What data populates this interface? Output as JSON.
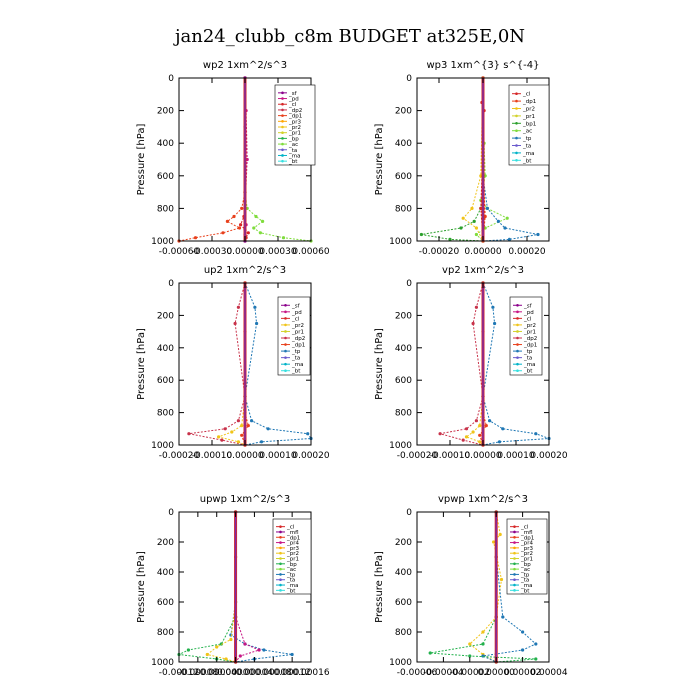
{
  "figure": {
    "title": "jan24_clubb_c8m  BUDGET at325E,0N"
  },
  "colors": {
    "_sf": "#8b008b",
    "_pd": "#c71585",
    "_cl": "#d62728",
    "_dp2": "#c8324a",
    "_dp1": "#e8401c",
    "_pr3": "#ffa500",
    "_pr2": "#f0c419",
    "_pr1": "#d2d22a",
    "_bp": "#22b14c",
    "_bp1": "#2ca02c",
    "_ac": "#7fdc3c",
    "_tp": "#1f77b4",
    "_ta": "#6a5acd",
    "_ma": "#00b3c8",
    "_bt": "#36e0e0",
    "_mfl": "#8b008b",
    "_pr4": "#c71585"
  },
  "chart_data": [
    {
      "type": "line",
      "title": "wp2  1xm^2/s^3",
      "ylabel": "Pressure  [hPa]",
      "xlim": [
        -0.0006,
        0.0006
      ],
      "ylim": [
        1000,
        0
      ],
      "xticks": [
        "-0.00060",
        "-0.00030",
        "0.00000",
        "0.00030",
        "0.00060"
      ],
      "yticks": [
        "0",
        "200",
        "400",
        "600",
        "800",
        "1000"
      ],
      "legend": [
        "_sf",
        "_pd",
        "_cl",
        "_dp2",
        "_dp1",
        "_pr3",
        "_pr2",
        "_pr1",
        "_bp",
        "_ac",
        "_ta",
        "_ma",
        "_bt"
      ],
      "series": [
        {
          "name": "_ac",
          "x": [
            0,
            0,
            2e-05,
            0.0001,
            0.00016,
            8e-05,
            0.00014,
            0.00035,
            0.0006
          ],
          "y": [
            0,
            700,
            800,
            850,
            880,
            920,
            950,
            980,
            1000
          ]
        },
        {
          "name": "_dp1",
          "x": [
            0,
            0,
            -3e-05,
            -0.0001,
            -0.00016,
            -5e-05,
            -0.0002,
            -0.00045,
            -0.0006
          ],
          "y": [
            0,
            700,
            800,
            850,
            880,
            920,
            950,
            980,
            1000
          ]
        },
        {
          "name": "_cl",
          "x": [
            0,
            0,
            -1e-05,
            -4e-05,
            0,
            3e-05,
            1e-05,
            0
          ],
          "y": [
            0,
            750,
            850,
            900,
            930,
            950,
            980,
            1000
          ]
        },
        {
          "name": "_pd",
          "x": [
            0,
            1e-05,
            2e-05,
            0,
            1e-05,
            0,
            0
          ],
          "y": [
            0,
            200,
            500,
            800,
            900,
            960,
            1000
          ]
        },
        {
          "name": "_sf",
          "x": [
            0,
            0,
            0,
            0
          ],
          "y": [
            0,
            300,
            700,
            1000
          ]
        }
      ]
    },
    {
      "type": "line",
      "title": "wp3  1xm^{3} s^{-4}",
      "ylabel": "Pressure  [hPa]",
      "xlim": [
        -0.0003,
        0.0003
      ],
      "ylim": [
        1000,
        0
      ],
      "xticks": [
        "-0.00020",
        "0.00000",
        "0.00020"
      ],
      "yticks": [
        "0",
        "200",
        "400",
        "600",
        "800",
        "1000"
      ],
      "legend": [
        "_cl",
        "_dp1",
        "_pr2",
        "_pr1",
        "_bp1",
        "_ac",
        "_tp",
        "_ta",
        "_ma",
        "_bt"
      ],
      "series": [
        {
          "name": "_ac",
          "x": [
            0,
            5e-06,
            1e-05,
            -1e-05,
            2e-05,
            0.00011,
            1e-05,
            -3e-05,
            0
          ],
          "y": [
            0,
            400,
            600,
            750,
            800,
            860,
            920,
            960,
            1000
          ]
        },
        {
          "name": "_bp1",
          "x": [
            0,
            0,
            -1e-05,
            -4e-05,
            -0.0001,
            -0.00028,
            -0.00015,
            0
          ],
          "y": [
            0,
            600,
            800,
            880,
            920,
            960,
            990,
            1000
          ]
        },
        {
          "name": "_tp",
          "x": [
            0,
            0,
            2e-05,
            7e-05,
            0.0001,
            0.00025,
            0.00012,
            0
          ],
          "y": [
            0,
            600,
            800,
            880,
            920,
            960,
            990,
            1000
          ]
        },
        {
          "name": "_pr2",
          "x": [
            0,
            -1e-05,
            -5e-05,
            -9e-05,
            -3e-05,
            0
          ],
          "y": [
            0,
            600,
            800,
            860,
            920,
            1000
          ]
        },
        {
          "name": "_cl",
          "x": [
            0,
            -5e-06,
            5e-06,
            -1e-05,
            0
          ],
          "y": [
            0,
            150,
            200,
            800,
            1000
          ]
        },
        {
          "name": "_dp1",
          "x": [
            0,
            0,
            1e-05,
            0
          ],
          "y": [
            0,
            500,
            850,
            1000
          ]
        }
      ]
    },
    {
      "type": "line",
      "title": "up2  1xm^2/s^3",
      "ylabel": "Pressure  [hPa]",
      "xlim": [
        -0.0002,
        0.0002
      ],
      "ylim": [
        1000,
        0
      ],
      "xticks": [
        "-0.00020",
        "-0.00010",
        "0.00000",
        "0.00010",
        "0.00020"
      ],
      "yticks": [
        "0",
        "200",
        "400",
        "600",
        "800",
        "1000"
      ],
      "legend": [
        "_sf",
        "_pd",
        "_cl",
        "_pr2",
        "_pr1",
        "_dp2",
        "_dp1",
        "_tp",
        "_ta",
        "_ma",
        "_bt"
      ],
      "series": [
        {
          "name": "_dp2",
          "x": [
            0,
            -2e-05,
            -3e-05,
            0,
            -2e-05,
            -6e-05,
            -0.00017,
            -7e-05,
            0
          ],
          "y": [
            0,
            150,
            250,
            700,
            850,
            900,
            930,
            970,
            1000
          ]
        },
        {
          "name": "_tp",
          "x": [
            0,
            3e-05,
            3.5e-05,
            0,
            2e-05,
            7e-05,
            0.00019,
            0.0002,
            5e-05,
            0
          ],
          "y": [
            0,
            150,
            250,
            700,
            850,
            900,
            930,
            960,
            980,
            1000
          ]
        },
        {
          "name": "_pr2",
          "x": [
            0,
            0,
            -1e-05,
            -4e-05,
            -8e-05,
            -2e-05,
            0
          ],
          "y": [
            0,
            700,
            880,
            920,
            950,
            980,
            1000
          ]
        },
        {
          "name": "_dp1",
          "x": [
            0,
            0,
            1e-05,
            -1e-05,
            0
          ],
          "y": [
            0,
            800,
            880,
            940,
            1000
          ]
        },
        {
          "name": "_cl",
          "x": [
            0,
            0,
            0,
            0
          ],
          "y": [
            0,
            300,
            700,
            1000
          ]
        }
      ]
    },
    {
      "type": "line",
      "title": "vp2  1xm^2/s^3",
      "ylabel": "Pressure  [hPa]",
      "xlim": [
        -0.0002,
        0.0002
      ],
      "ylim": [
        1000,
        0
      ],
      "xticks": [
        "-0.00020",
        "-0.00010",
        "0.00000",
        "0.00010",
        "0.00020"
      ],
      "yticks": [
        "0",
        "200",
        "400",
        "600",
        "800",
        "1000"
      ],
      "legend": [
        "_sf",
        "_pd",
        "_cl",
        "_pr2",
        "_pr1",
        "_dp2",
        "_dp1",
        "_tp",
        "_ta",
        "_ma",
        "_bt"
      ],
      "series": [
        {
          "name": "_dp2",
          "x": [
            0,
            -2e-05,
            -3e-05,
            0,
            -2e-05,
            -5e-05,
            -0.00013,
            -6e-05,
            0
          ],
          "y": [
            0,
            150,
            250,
            700,
            850,
            900,
            930,
            970,
            1000
          ]
        },
        {
          "name": "_tp",
          "x": [
            0,
            3e-05,
            3.5e-05,
            0,
            2e-05,
            6e-05,
            0.00016,
            0.0002,
            5e-05,
            0
          ],
          "y": [
            0,
            150,
            250,
            700,
            850,
            900,
            930,
            960,
            980,
            1000
          ]
        },
        {
          "name": "_pr2",
          "x": [
            0,
            0,
            -1e-05,
            -3e-05,
            -5e-05,
            -1e-05,
            0
          ],
          "y": [
            0,
            700,
            880,
            920,
            950,
            980,
            1000
          ]
        },
        {
          "name": "_dp1",
          "x": [
            0,
            0,
            1e-05,
            -1e-05,
            0
          ],
          "y": [
            0,
            800,
            880,
            940,
            1000
          ]
        },
        {
          "name": "_cl",
          "x": [
            0,
            0,
            0,
            0
          ],
          "y": [
            0,
            300,
            700,
            1000
          ]
        }
      ]
    },
    {
      "type": "line",
      "title": "upwp  1xm^2/s^3",
      "ylabel": "Pressure  [hPa]",
      "xlim": [
        -0.00012,
        0.00016
      ],
      "ylim": [
        1000,
        0
      ],
      "xticks": [
        "-0.00012",
        "-0.00008",
        "-0.00004",
        "0.00000",
        "0.00004",
        "0.00008",
        "0.00012",
        "0.00016"
      ],
      "yticks": [
        "0",
        "200",
        "400",
        "600",
        "800",
        "1000"
      ],
      "legend": [
        "_cl",
        "_mfl",
        "_dp1",
        "_pr4",
        "_pr3",
        "_pr2",
        "_pr1",
        "_bp",
        "_ac",
        "_tp",
        "_ta",
        "_ma",
        "_bt"
      ],
      "series": [
        {
          "name": "_tp",
          "x": [
            0,
            0,
            -1e-05,
            2e-05,
            6e-05,
            0.00012,
            4e-05,
            0
          ],
          "y": [
            0,
            600,
            820,
            880,
            920,
            950,
            980,
            1000
          ]
        },
        {
          "name": "_bp",
          "x": [
            0,
            0,
            -3e-05,
            -0.0001,
            -0.00012,
            -4e-05,
            0
          ],
          "y": [
            0,
            700,
            880,
            920,
            950,
            980,
            1000
          ]
        },
        {
          "name": "_pr2",
          "x": [
            0,
            0,
            -1e-05,
            -4e-05,
            -6e-05,
            -2e-05,
            0
          ],
          "y": [
            0,
            600,
            850,
            900,
            950,
            980,
            1000
          ]
        },
        {
          "name": "_pr4",
          "x": [
            0,
            0,
            2e-05,
            5e-05,
            1e-05,
            0
          ],
          "y": [
            0,
            700,
            880,
            920,
            960,
            1000
          ]
        },
        {
          "name": "_cl",
          "x": [
            0,
            0,
            0,
            0
          ],
          "y": [
            0,
            300,
            700,
            1000
          ]
        }
      ]
    },
    {
      "type": "line",
      "title": "vpwp  1xm^2/s^3",
      "ylabel": "Pressure  [hPa]",
      "xlim": [
        -6e-05,
        4e-05
      ],
      "ylim": [
        1000,
        0
      ],
      "xticks": [
        "-0.00006",
        "-0.00004",
        "-0.00002",
        "0.00000",
        "0.00002",
        "0.00004"
      ],
      "yticks": [
        "0",
        "200",
        "400",
        "600",
        "800",
        "1000"
      ],
      "legend": [
        "_cl",
        "_mfl",
        "_dp1",
        "_pr4",
        "_pr3",
        "_pr2",
        "_pr1",
        "_bp",
        "_ac",
        "_tp",
        "_ta",
        "_ma",
        "_bt"
      ],
      "series": [
        {
          "name": "_pr2",
          "x": [
            0,
            3e-06,
            -2e-06,
            4e-06,
            0,
            -1e-05,
            -2e-05,
            -1e-05,
            0
          ],
          "y": [
            0,
            150,
            200,
            450,
            700,
            800,
            880,
            950,
            1000
          ]
        },
        {
          "name": "_tp",
          "x": [
            0,
            0,
            5e-06,
            2e-05,
            3e-05,
            2e-05,
            -1e-05,
            0
          ],
          "y": [
            0,
            300,
            700,
            800,
            880,
            920,
            960,
            1000
          ]
        },
        {
          "name": "_bp",
          "x": [
            0,
            0,
            -1e-05,
            -5e-05,
            -2e-05,
            3e-05,
            0
          ],
          "y": [
            0,
            700,
            880,
            940,
            960,
            980,
            1000
          ]
        },
        {
          "name": "_cl",
          "x": [
            0,
            0,
            0,
            0
          ],
          "y": [
            0,
            300,
            700,
            1000
          ]
        }
      ]
    }
  ]
}
